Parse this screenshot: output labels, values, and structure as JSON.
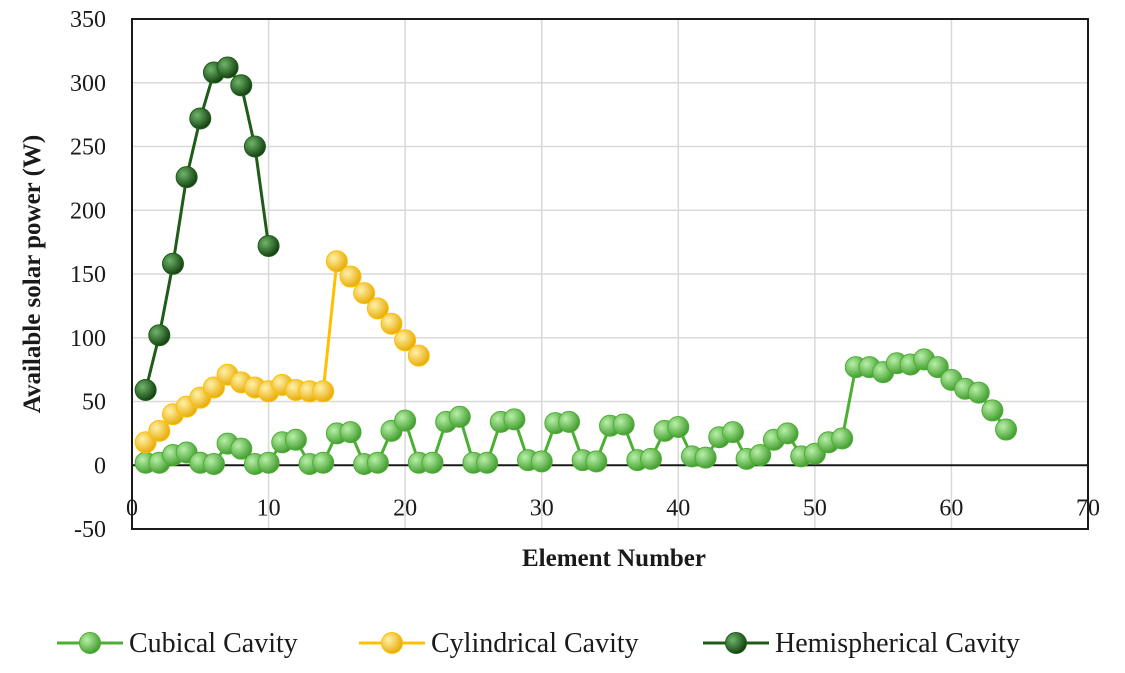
{
  "chart_data": {
    "type": "line",
    "title": "",
    "xlabel": "Element Number",
    "ylabel": "Available solar power (W)",
    "xlim": [
      0,
      70
    ],
    "ylim": [
      -50,
      350
    ],
    "xticks": [
      0,
      10,
      20,
      30,
      40,
      50,
      60,
      70
    ],
    "yticks": [
      -50,
      0,
      50,
      100,
      150,
      200,
      250,
      300,
      350
    ],
    "grid": true,
    "legend": "bottom",
    "series": [
      {
        "name": "Cubical Cavity",
        "color": "#4cae33",
        "x": [
          1,
          2,
          3,
          4,
          5,
          6,
          7,
          8,
          9,
          10,
          11,
          12,
          13,
          14,
          15,
          16,
          17,
          18,
          19,
          20,
          21,
          22,
          23,
          24,
          25,
          26,
          27,
          28,
          29,
          30,
          31,
          32,
          33,
          34,
          35,
          36,
          37,
          38,
          39,
          40,
          41,
          42,
          43,
          44,
          45,
          46,
          47,
          48,
          49,
          50,
          51,
          52,
          53,
          54,
          55,
          56,
          57,
          58,
          59,
          60,
          61,
          62,
          63,
          64
        ],
        "y": [
          2,
          2,
          8,
          10,
          2,
          1,
          17,
          13,
          1,
          2,
          18,
          20,
          1,
          2,
          25,
          26,
          1,
          2,
          27,
          35,
          2,
          2,
          34,
          38,
          2,
          2,
          34,
          36,
          4,
          3,
          33,
          34,
          4,
          3,
          31,
          32,
          4,
          5,
          27,
          30,
          7,
          6,
          22,
          26,
          5,
          8,
          20,
          25,
          7,
          9,
          18,
          21,
          77,
          77,
          73,
          80,
          79,
          83,
          77,
          67,
          60,
          57,
          43,
          28
        ]
      },
      {
        "name": "Cylindrical Cavity",
        "color": "#ffc000",
        "x": [
          1,
          2,
          3,
          4,
          5,
          6,
          7,
          8,
          9,
          10,
          11,
          12,
          13,
          14,
          15,
          16,
          17,
          18,
          19,
          20,
          21
        ],
        "y": [
          18,
          27,
          40,
          46,
          53,
          61,
          71,
          65,
          61,
          58,
          63,
          59,
          58,
          58,
          160,
          148,
          135,
          123,
          111,
          98,
          86
        ]
      },
      {
        "name": "Hemispherical Cavity",
        "color": "#1f5c1a",
        "x": [
          1,
          2,
          3,
          4,
          5,
          6,
          7,
          8,
          9,
          10
        ],
        "y": [
          59,
          102,
          158,
          226,
          272,
          308,
          312,
          298,
          250,
          172
        ]
      }
    ]
  }
}
